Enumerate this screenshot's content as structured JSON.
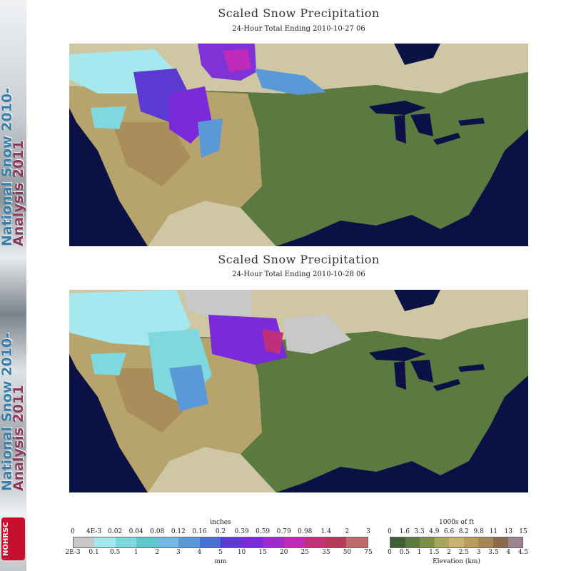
{
  "banner": {
    "line1": "National Snow 2010-",
    "line2": "Analysis 2011",
    "logo": "NOHRSC"
  },
  "panels": [
    {
      "title": "Scaled Snow Precipitation",
      "subtitle": "24-Hour Total Ending 2010-10-27 06"
    },
    {
      "title": "Scaled Snow Precipitation",
      "subtitle": "24-Hour Total Ending 2010-10-28 06"
    }
  ],
  "precip_legend": {
    "top_unit": "inches",
    "bottom_unit": "mm",
    "top_ticks": [
      "0",
      "4E-3",
      "0.02",
      "0.04",
      "0.08",
      "0.12",
      "0.16",
      "0.2",
      "0.39",
      "0.59",
      "0.79",
      "0.98",
      "1.4",
      "2",
      "3"
    ],
    "bottom_ticks": [
      "2E-3",
      "0.1",
      "0.5",
      "1",
      "2",
      "3",
      "4",
      "5",
      "10",
      "15",
      "20",
      "25",
      "35",
      "50",
      "75"
    ],
    "colors": [
      "#c8c8c8",
      "#a6e8ef",
      "#7fd8de",
      "#5fc8cf",
      "#74b8e6",
      "#5a98d8",
      "#4a6fd4",
      "#5a3ad0",
      "#7a2ad8",
      "#a02ad0",
      "#c02ab8",
      "#c0307a",
      "#b8385a",
      "#c06a6a"
    ]
  },
  "elev_legend": {
    "top_unit": "1000s of ft",
    "bottom_unit": "Elevation (km)",
    "top_ticks": [
      "0",
      "1.6",
      "3.3",
      "4.9",
      "6.6",
      "8.2",
      "9.8",
      "11",
      "13",
      "15"
    ],
    "bottom_ticks": [
      "0",
      "0.5",
      "1",
      "1.5",
      "2",
      "2.5",
      "3",
      "3.5",
      "4",
      "4.5"
    ],
    "colors": [
      "#3f5f34",
      "#5a7a3e",
      "#7e9048",
      "#a8a45a",
      "#c8b470",
      "#bc9a5e",
      "#a88456",
      "#8e6a4a",
      "#9c8490"
    ]
  }
}
